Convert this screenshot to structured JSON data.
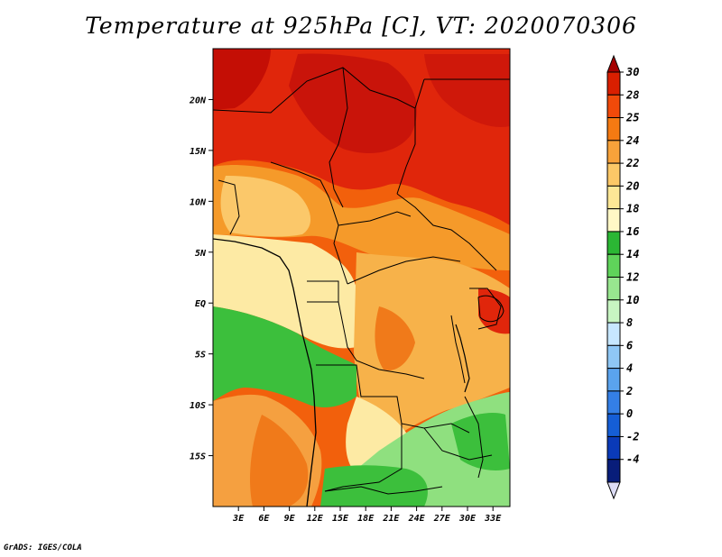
{
  "title": "Temperature at 925hPa [C], VT: 2020070306",
  "credit": "GrADS: IGES/COLA",
  "map": {
    "lon_range": [
      0,
      35
    ],
    "lat_range": [
      -20,
      25
    ],
    "x_ticks": [
      {
        "lon": 3,
        "label": "3E"
      },
      {
        "lon": 6,
        "label": "6E"
      },
      {
        "lon": 9,
        "label": "9E"
      },
      {
        "lon": 12,
        "label": "12E"
      },
      {
        "lon": 15,
        "label": "15E"
      },
      {
        "lon": 18,
        "label": "18E"
      },
      {
        "lon": 21,
        "label": "21E"
      },
      {
        "lon": 24,
        "label": "24E"
      },
      {
        "lon": 27,
        "label": "27E"
      },
      {
        "lon": 30,
        "label": "30E"
      },
      {
        "lon": 33,
        "label": "33E"
      }
    ],
    "y_ticks": [
      {
        "lat": 20,
        "label": "20N"
      },
      {
        "lat": 15,
        "label": "15N"
      },
      {
        "lat": 10,
        "label": "10N"
      },
      {
        "lat": 5,
        "label": "5N"
      },
      {
        "lat": 0,
        "label": "EQ"
      },
      {
        "lat": -5,
        "label": "5S"
      },
      {
        "lat": -10,
        "label": "10S"
      },
      {
        "lat": -15,
        "label": "15S"
      }
    ]
  },
  "colorbar": {
    "levels": [
      "30",
      "28",
      "25",
      "24",
      "22",
      "20",
      "18",
      "16",
      "14",
      "12",
      "10",
      "8",
      "6",
      "4",
      "2",
      "0",
      "-2",
      "-4"
    ],
    "colors": [
      "#a50000",
      "#d91f00",
      "#f04a0a",
      "#f57a12",
      "#f8a23a",
      "#fcc867",
      "#fde796",
      "#fff8c6",
      "#2bb734",
      "#5fd35a",
      "#98e68f",
      "#c8f5c2",
      "#c7e7ff",
      "#8fc7f5",
      "#5aa3ee",
      "#347fe6",
      "#155ed6",
      "#0a3ab8",
      "#081d7a",
      "#dcdcf5"
    ]
  }
}
